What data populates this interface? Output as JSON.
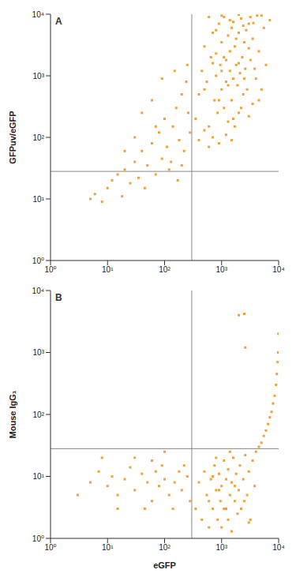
{
  "chart_data": [
    {
      "type": "scatter",
      "title": "A",
      "y_label": "GFPuv/eGFP",
      "color": "#f0a138",
      "log": true,
      "xlim": [
        1,
        10000
      ],
      "ylim": [
        1,
        10000
      ],
      "xticks": [
        {
          "value": 1,
          "label": "10⁰"
        },
        {
          "value": 10,
          "label": "10¹"
        },
        {
          "value": 100,
          "label": "10²"
        },
        {
          "value": 1000,
          "label": "10³"
        },
        {
          "value": 10000,
          "label": "10⁴"
        }
      ],
      "yticks": [
        {
          "value": 1,
          "label": "10⁰"
        },
        {
          "value": 10,
          "label": "10¹"
        },
        {
          "value": 100,
          "label": "10²"
        },
        {
          "value": 1000,
          "label": "10³"
        },
        {
          "value": 10000,
          "label": "10⁴"
        }
      ],
      "quadrant_x": 300,
      "quadrant_y": 28,
      "x": [
        5,
        6,
        8,
        10,
        12,
        15,
        18,
        20,
        25,
        30,
        35,
        40,
        45,
        50,
        60,
        70,
        80,
        90,
        100,
        110,
        120,
        140,
        160,
        180,
        200,
        220,
        250,
        260,
        280,
        150,
        90,
        60,
        40,
        30,
        20,
        70,
        130,
        170,
        200,
        240,
        350,
        400,
        450,
        500,
        550,
        600,
        650,
        700,
        750,
        800,
        850,
        900,
        950,
        1000,
        1000,
        1100,
        1100,
        1200,
        1200,
        1300,
        1300,
        1400,
        1400,
        1500,
        1500,
        1600,
        1700,
        1700,
        1800,
        1900,
        2000,
        2000,
        2100,
        2200,
        2300,
        2400,
        2500,
        2600,
        2800,
        3000,
        3000,
        3200,
        3500,
        3500,
        4000,
        4200,
        4500,
        5000,
        5500,
        6000,
        7000,
        400,
        500,
        600,
        700,
        900,
        1200,
        1500,
        800,
        1000,
        1600,
        2000,
        2500,
        3000,
        1800,
        1300,
        1100,
        900,
        700,
        500,
        2200,
        2700,
        3800,
        4500,
        1400,
        1000,
        600,
        2000,
        3200,
        5000,
        800,
        1600,
        2400,
        3600
      ],
      "values": [
        10,
        12,
        9,
        15,
        20,
        25,
        11,
        30,
        18,
        40,
        22,
        60,
        15,
        35,
        80,
        25,
        120,
        45,
        200,
        70,
        30,
        150,
        300,
        90,
        500,
        60,
        1500,
        250,
        120,
        1200,
        900,
        400,
        250,
        100,
        60,
        150,
        40,
        20,
        35,
        800,
        200,
        500,
        1200,
        3000,
        800,
        150,
        2000,
        5000,
        400,
        1000,
        250,
        7000,
        1500,
        600,
        3500,
        300,
        9000,
        1800,
        800,
        4500,
        180,
        1200,
        2500,
        6000,
        400,
        900,
        3000,
        150,
        1500,
        700,
        5000,
        250,
        1100,
        8500,
        2000,
        500,
        3500,
        1300,
        600,
        7000,
        220,
        1800,
        4000,
        350,
        900,
        9500,
        2500,
        600,
        6000,
        1500,
        8000,
        90,
        130,
        70,
        100,
        80,
        110,
        90,
        2300,
        1200,
        200,
        1600,
        900,
        2800,
        4000,
        700,
        2000,
        400,
        1600,
        600,
        300,
        5500,
        1300,
        400,
        8000,
        9500,
        9000,
        9800,
        9000,
        9500,
        5500,
        7500,
        6500,
        7200
      ]
    },
    {
      "type": "scatter",
      "title": "B",
      "x_label": "eGFP",
      "y_label": "Mouse IgG₁",
      "color": "#f0a138",
      "log": true,
      "xlim": [
        1,
        10000
      ],
      "ylim": [
        1,
        10000
      ],
      "xticks": [
        {
          "value": 1,
          "label": "10⁰"
        },
        {
          "value": 10,
          "label": "10¹"
        },
        {
          "value": 100,
          "label": "10²"
        },
        {
          "value": 1000,
          "label": "10³"
        },
        {
          "value": 10000,
          "label": "10⁴"
        }
      ],
      "yticks": [
        {
          "value": 1,
          "label": "10⁰"
        },
        {
          "value": 10,
          "label": "10¹"
        },
        {
          "value": 100,
          "label": "10²"
        },
        {
          "value": 1000,
          "label": "10³"
        },
        {
          "value": 10000,
          "label": "10⁴"
        }
      ],
      "quadrant_x": 300,
      "quadrant_y": 28,
      "x": [
        3,
        5,
        7,
        10,
        12,
        15,
        20,
        25,
        30,
        40,
        50,
        60,
        70,
        80,
        100,
        120,
        150,
        180,
        200,
        250,
        30,
        60,
        100,
        8,
        15,
        45,
        90,
        140,
        220,
        280,
        350,
        400,
        450,
        500,
        550,
        600,
        650,
        700,
        750,
        800,
        850,
        900,
        950,
        1000,
        1000,
        1100,
        1100,
        1200,
        1300,
        1300,
        1400,
        1500,
        1500,
        1600,
        1700,
        1800,
        1900,
        2000,
        2100,
        2200,
        2400,
        2600,
        2800,
        3000,
        3200,
        3500,
        3800,
        4000,
        600,
        900,
        1200,
        1700,
        700,
        2500,
        3000,
        1400,
        800,
        4500,
        5000,
        5500,
        6000,
        6500,
        7000,
        7500,
        8000,
        8500,
        9000,
        9300,
        9600,
        9800,
        9900,
        2000,
        2500,
        2600
      ],
      "values": [
        5,
        8,
        12,
        7,
        10,
        5,
        9,
        14,
        6,
        11,
        8,
        4,
        12,
        7,
        9,
        5,
        8,
        12,
        6,
        10,
        20,
        18,
        25,
        20,
        3,
        3,
        15,
        3,
        15,
        4,
        3,
        8,
        2,
        12,
        5,
        1.5,
        9,
        3,
        15,
        6,
        2,
        11,
        4,
        7,
        1.5,
        18,
        3,
        9,
        2,
        13,
        5,
        8,
        1.3,
        20,
        4,
        11,
        2.5,
        6,
        15,
        3,
        9,
        22,
        5,
        12,
        2,
        18,
        7,
        25,
        4,
        6,
        3,
        7,
        10,
        4,
        1.8,
        25,
        20,
        30,
        35,
        45,
        55,
        70,
        90,
        110,
        150,
        200,
        300,
        450,
        700,
        1000,
        2000,
        4000,
        4200,
        1200
      ]
    }
  ]
}
